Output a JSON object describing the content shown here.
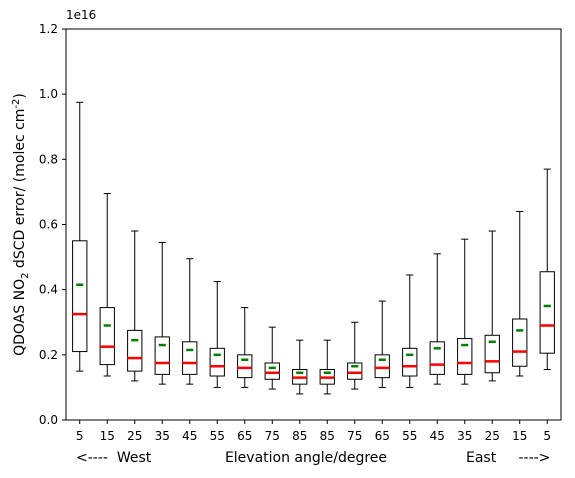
{
  "chart_data": {
    "type": "box",
    "title": "",
    "xlabel": "Elevation angle/degree",
    "ylabel_main": "QDOAS NO",
    "ylabel_sub": "2",
    "ylabel_rest": " dSCD error/ (molec cm",
    "ylabel_sup": "-2",
    "ylabel_end": ")",
    "y_offset_text": "1e16",
    "west_label": "<----  West",
    "east_label": "East     ---->",
    "ylim": [
      0.0,
      1.2
    ],
    "yticks": [
      "0.0",
      "0.2",
      "0.4",
      "0.6",
      "0.8",
      "1.0",
      "1.2"
    ],
    "categories": [
      "5",
      "15",
      "25",
      "35",
      "45",
      "55",
      "65",
      "75",
      "85",
      "85",
      "75",
      "65",
      "55",
      "45",
      "35",
      "25",
      "15",
      "5"
    ],
    "boxes": [
      {
        "whislo": 0.15,
        "q1": 0.21,
        "med": 0.325,
        "q3": 0.55,
        "whishi": 0.975,
        "mean": 0.415
      },
      {
        "whislo": 0.135,
        "q1": 0.17,
        "med": 0.225,
        "q3": 0.345,
        "whishi": 0.695,
        "mean": 0.29
      },
      {
        "whislo": 0.12,
        "q1": 0.15,
        "med": 0.19,
        "q3": 0.275,
        "whishi": 0.58,
        "mean": 0.245
      },
      {
        "whislo": 0.11,
        "q1": 0.14,
        "med": 0.175,
        "q3": 0.255,
        "whishi": 0.545,
        "mean": 0.23
      },
      {
        "whislo": 0.11,
        "q1": 0.14,
        "med": 0.175,
        "q3": 0.24,
        "whishi": 0.495,
        "mean": 0.215
      },
      {
        "whislo": 0.1,
        "q1": 0.135,
        "med": 0.165,
        "q3": 0.22,
        "whishi": 0.425,
        "mean": 0.2
      },
      {
        "whislo": 0.1,
        "q1": 0.13,
        "med": 0.16,
        "q3": 0.2,
        "whishi": 0.345,
        "mean": 0.185
      },
      {
        "whislo": 0.095,
        "q1": 0.125,
        "med": 0.145,
        "q3": 0.175,
        "whishi": 0.285,
        "mean": 0.16
      },
      {
        "whislo": 0.08,
        "q1": 0.11,
        "med": 0.13,
        "q3": 0.155,
        "whishi": 0.245,
        "mean": 0.145
      },
      {
        "whislo": 0.08,
        "q1": 0.11,
        "med": 0.13,
        "q3": 0.155,
        "whishi": 0.245,
        "mean": 0.145
      },
      {
        "whislo": 0.095,
        "q1": 0.125,
        "med": 0.145,
        "q3": 0.175,
        "whishi": 0.3,
        "mean": 0.165
      },
      {
        "whislo": 0.1,
        "q1": 0.13,
        "med": 0.16,
        "q3": 0.2,
        "whishi": 0.365,
        "mean": 0.185
      },
      {
        "whislo": 0.1,
        "q1": 0.135,
        "med": 0.165,
        "q3": 0.22,
        "whishi": 0.445,
        "mean": 0.2
      },
      {
        "whislo": 0.11,
        "q1": 0.14,
        "med": 0.17,
        "q3": 0.24,
        "whishi": 0.51,
        "mean": 0.22
      },
      {
        "whislo": 0.11,
        "q1": 0.14,
        "med": 0.175,
        "q3": 0.25,
        "whishi": 0.555,
        "mean": 0.23
      },
      {
        "whislo": 0.12,
        "q1": 0.145,
        "med": 0.18,
        "q3": 0.26,
        "whishi": 0.58,
        "mean": 0.24
      },
      {
        "whislo": 0.135,
        "q1": 0.165,
        "med": 0.21,
        "q3": 0.31,
        "whishi": 0.64,
        "mean": 0.275
      },
      {
        "whislo": 0.155,
        "q1": 0.205,
        "med": 0.29,
        "q3": 0.455,
        "whishi": 0.77,
        "mean": 0.35
      }
    ],
    "colors": {
      "median": "#ff0000",
      "mean": "#008000",
      "box": "#000000"
    },
    "grid": false,
    "legend": "none"
  }
}
